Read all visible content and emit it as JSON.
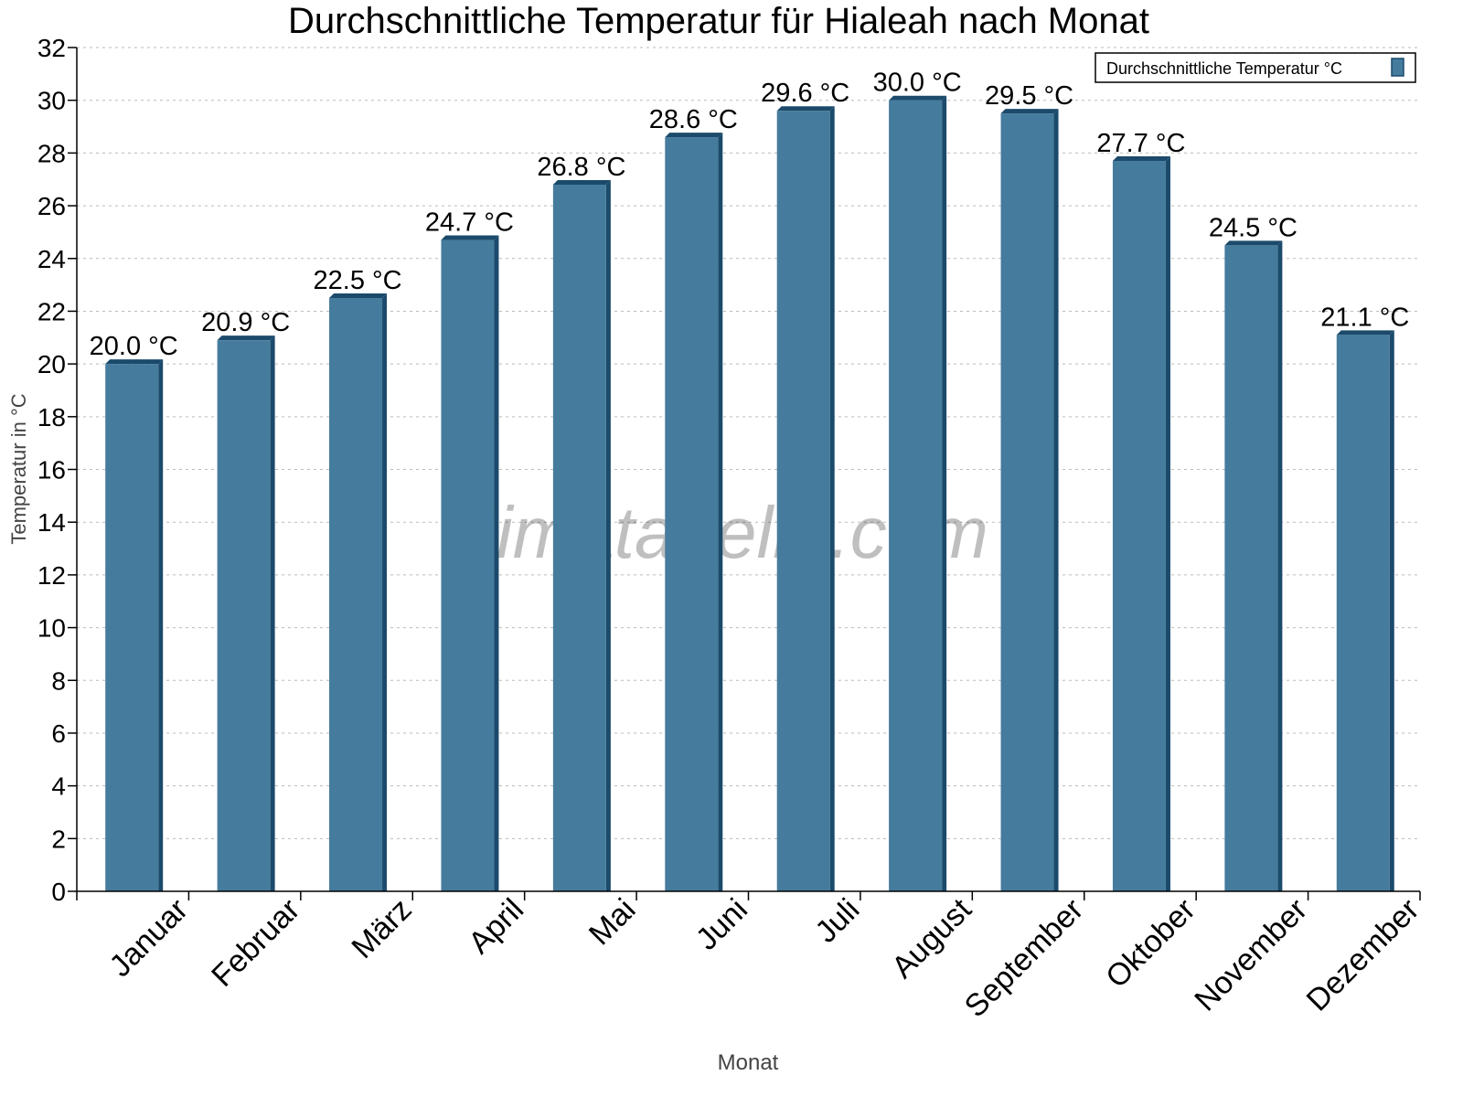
{
  "chart_data": {
    "type": "bar",
    "title": "Durchschnittliche Temperatur für Hialeah nach Monat",
    "xlabel": "Monat",
    "ylabel": "Temperatur in °C",
    "categories": [
      "Januar",
      "Februar",
      "März",
      "April",
      "Mai",
      "Juni",
      "Juli",
      "August",
      "September",
      "Oktober",
      "November",
      "Dezember"
    ],
    "series": [
      {
        "name": "Durchschnittliche Temperatur °C",
        "color": "#457b9d",
        "values": [
          20.0,
          20.9,
          22.5,
          24.7,
          26.8,
          28.6,
          29.6,
          30.0,
          29.5,
          27.7,
          24.5,
          21.1
        ]
      }
    ],
    "data_labels": [
      "20.0 °C",
      "20.9 °C",
      "22.5 °C",
      "24.7 °C",
      "26.8 °C",
      "28.6 °C",
      "29.6 °C",
      "30.0 °C",
      "29.5 °C",
      "27.7 °C",
      "24.5 °C",
      "21.1 °C"
    ],
    "ylim": [
      0,
      32
    ],
    "yticks": [
      0,
      2,
      4,
      6,
      8,
      10,
      12,
      14,
      16,
      18,
      20,
      22,
      24,
      26,
      28,
      30,
      32
    ],
    "grid": true,
    "legend_position": "top-right",
    "watermark": "klimatabelle.com"
  }
}
